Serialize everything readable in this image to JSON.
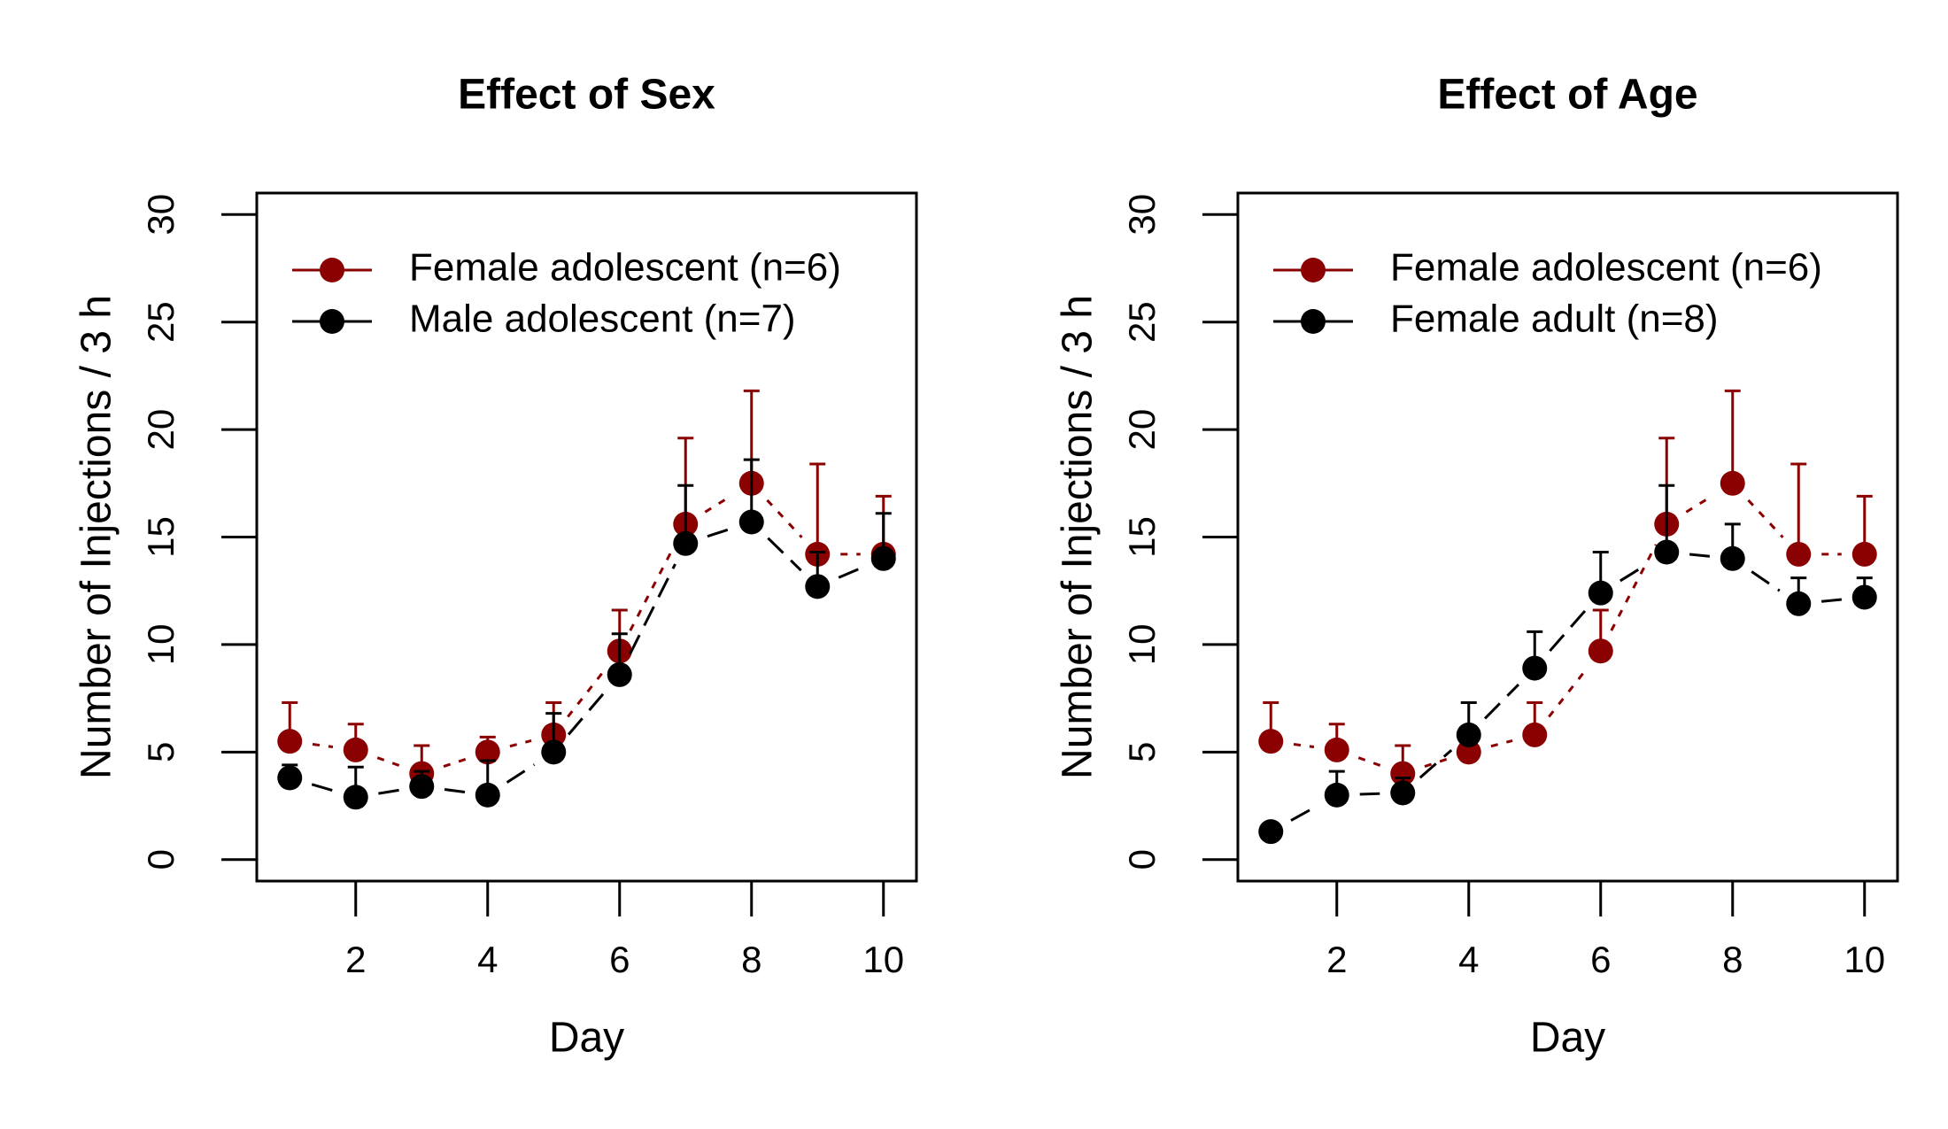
{
  "chart_data": [
    {
      "type": "line",
      "title": "Effect of Sex",
      "xlabel": "Day",
      "ylabel": "Number of Injections / 3 h",
      "xlim": [
        0.5,
        10.5
      ],
      "ylim": [
        -1,
        31
      ],
      "xticks": [
        2,
        4,
        6,
        8,
        10
      ],
      "yticks": [
        0,
        5,
        10,
        15,
        20,
        25,
        30
      ],
      "legend_position": "top-left",
      "x": [
        1,
        2,
        3,
        4,
        5,
        6,
        7,
        8,
        9,
        10
      ],
      "series": [
        {
          "name": "Female adolescent (n=6)",
          "color": "#8b0000",
          "values": [
            5.5,
            5.1,
            4.0,
            5.0,
            5.8,
            9.7,
            15.6,
            17.5,
            14.2,
            14.2
          ],
          "error_upper": [
            7.3,
            6.3,
            5.3,
            5.7,
            7.3,
            11.6,
            19.6,
            21.8,
            18.4,
            16.9
          ]
        },
        {
          "name": "Male adolescent (n=7)",
          "color": "#000000",
          "values": [
            3.8,
            2.9,
            3.4,
            3.0,
            5.0,
            8.6,
            14.7,
            15.7,
            12.7,
            14.0
          ],
          "error_upper": [
            4.4,
            4.3,
            4.1,
            4.6,
            6.8,
            10.5,
            17.4,
            18.6,
            14.3,
            16.1
          ]
        }
      ]
    },
    {
      "type": "line",
      "title": "Effect of Age",
      "xlabel": "Day",
      "ylabel": "Number of Injections / 3 h",
      "xlim": [
        0.5,
        10.5
      ],
      "ylim": [
        -1,
        31
      ],
      "xticks": [
        2,
        4,
        6,
        8,
        10
      ],
      "yticks": [
        0,
        5,
        10,
        15,
        20,
        25,
        30
      ],
      "legend_position": "top-left",
      "x": [
        1,
        2,
        3,
        4,
        5,
        6,
        7,
        8,
        9,
        10
      ],
      "series": [
        {
          "name": "Female adolescent (n=6)",
          "color": "#8b0000",
          "values": [
            5.5,
            5.1,
            4.0,
            5.0,
            5.8,
            9.7,
            15.6,
            17.5,
            14.2,
            14.2
          ],
          "error_upper": [
            7.3,
            6.3,
            5.3,
            5.7,
            7.3,
            11.6,
            19.6,
            21.8,
            18.4,
            16.9
          ]
        },
        {
          "name": "Female adult (n=8)",
          "color": "#000000",
          "values": [
            1.3,
            3.0,
            3.1,
            5.8,
            8.9,
            12.4,
            14.3,
            14.0,
            11.9,
            12.2
          ],
          "error_upper": [
            1.3,
            4.1,
            3.8,
            7.3,
            10.6,
            14.3,
            17.4,
            15.6,
            13.1,
            13.1
          ]
        }
      ]
    }
  ]
}
